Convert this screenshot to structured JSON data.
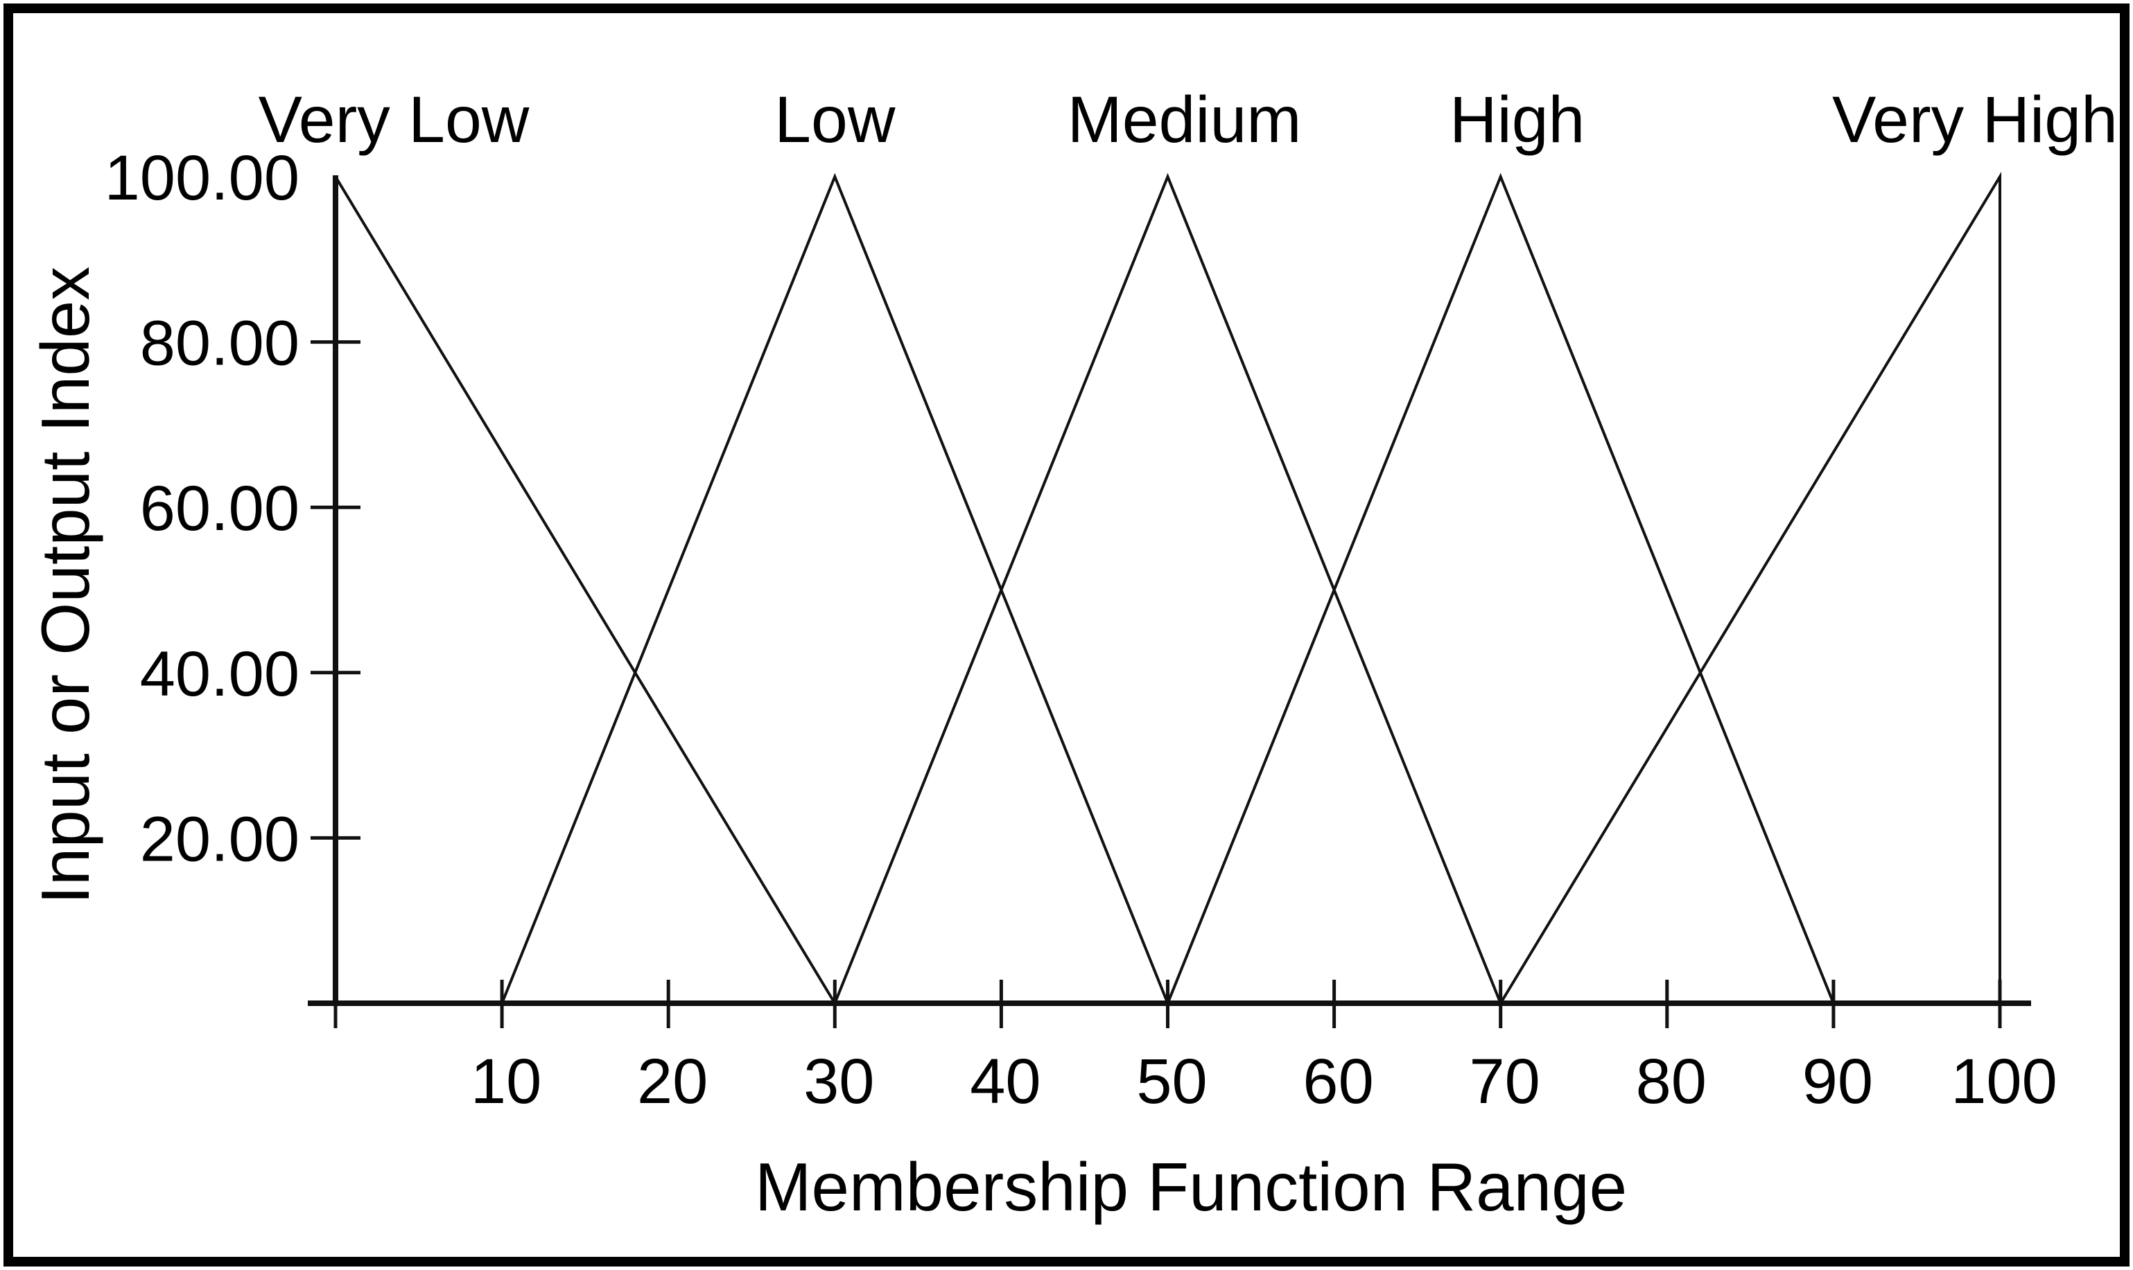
{
  "figure": {
    "background": "#ffffff",
    "border_color": "#000000",
    "ink_color": "#111111"
  },
  "chart_data": {
    "type": "line",
    "subtype": "fuzzy-triangular-membership-functions",
    "title": "",
    "xlabel": "Membership Function Range",
    "ylabel": "Input or Output Index",
    "xlim": [
      0,
      100
    ],
    "ylim": [
      0,
      100
    ],
    "grid": false,
    "legend_position": "none",
    "x_ticks": [
      {
        "value": 0,
        "label": ""
      },
      {
        "value": 10,
        "label": "10"
      },
      {
        "value": 20,
        "label": "20"
      },
      {
        "value": 30,
        "label": "30"
      },
      {
        "value": 40,
        "label": "40"
      },
      {
        "value": 50,
        "label": "50"
      },
      {
        "value": 60,
        "label": "60"
      },
      {
        "value": 70,
        "label": "70"
      },
      {
        "value": 80,
        "label": "80"
      },
      {
        "value": 90,
        "label": "90"
      },
      {
        "value": 100,
        "label": "100"
      }
    ],
    "y_ticks": [
      {
        "value": 20,
        "label": "20.00",
        "tick": true
      },
      {
        "value": 40,
        "label": "40.00",
        "tick": true
      },
      {
        "value": 60,
        "label": "60.00",
        "tick": true
      },
      {
        "value": 80,
        "label": "80.00",
        "tick": true
      },
      {
        "value": 100,
        "label": "100.00",
        "tick": false
      }
    ],
    "series": [
      {
        "name": "Very Low",
        "label_x": 3.5,
        "label_y": 100,
        "points": [
          [
            0,
            100
          ],
          [
            30,
            0
          ]
        ]
      },
      {
        "name": "Low",
        "label_x": 30,
        "label_y": 100,
        "points": [
          [
            10,
            0
          ],
          [
            30,
            100
          ],
          [
            50,
            0
          ]
        ]
      },
      {
        "name": "Medium",
        "label_x": 51,
        "label_y": 100,
        "points": [
          [
            30,
            0
          ],
          [
            50,
            100
          ],
          [
            70,
            0
          ]
        ]
      },
      {
        "name": "High",
        "label_x": 71,
        "label_y": 100,
        "points": [
          [
            50,
            0
          ],
          [
            70,
            100
          ],
          [
            90,
            0
          ]
        ]
      },
      {
        "name": "Very High",
        "label_x": 98.5,
        "label_y": 100,
        "points": [
          [
            70,
            0
          ],
          [
            100,
            100
          ],
          [
            100,
            0
          ]
        ]
      }
    ]
  }
}
